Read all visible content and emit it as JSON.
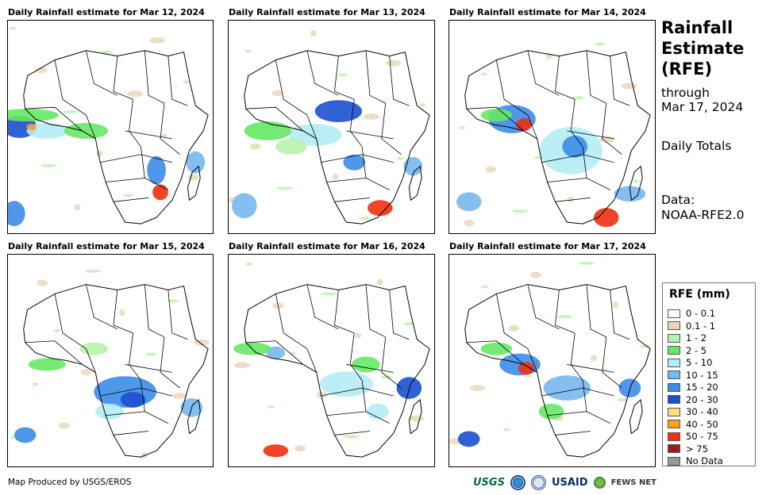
{
  "panels": [
    {
      "title": "Daily Rainfall estimate for Mar 12, 2024"
    },
    {
      "title": "Daily Rainfall estimate for Mar 13, 2024"
    },
    {
      "title": "Daily Rainfall estimate for Mar 14, 2024"
    },
    {
      "title": "Daily Rainfall estimate for Mar 15, 2024"
    },
    {
      "title": "Daily Rainfall estimate for Mar 16, 2024"
    },
    {
      "title": "Daily Rainfall estimate for Mar 17, 2024"
    }
  ],
  "sidebar": {
    "title_line1": "Rainfall",
    "title_line2": "Estimate",
    "title_line3": "(RFE)",
    "through": "through",
    "date": "Mar 17, 2024",
    "totals": "Daily Totals",
    "data_label": "Data:",
    "data_source": "NOAA-RFE2.0"
  },
  "legend": {
    "title": "RFE (mm)",
    "items": [
      {
        "label": "0 - 0.1",
        "color": "#ffffff"
      },
      {
        "label": "0.1 - 1",
        "color": "#e8d6b8"
      },
      {
        "label": "1 - 2",
        "color": "#b8f2a8"
      },
      {
        "label": "2 - 5",
        "color": "#66e866"
      },
      {
        "label": "5 - 10",
        "color": "#b4ecf4"
      },
      {
        "label": "10 - 15",
        "color": "#78b8f0"
      },
      {
        "label": "15 - 20",
        "color": "#3c8ce8"
      },
      {
        "label": "20 - 30",
        "color": "#1c50d0"
      },
      {
        "label": "30 - 40",
        "color": "#f8e080"
      },
      {
        "label": "40 - 50",
        "color": "#f8a020"
      },
      {
        "label": "50 - 75",
        "color": "#f03010"
      },
      {
        "label": "> 75",
        "color": "#a01c1c"
      },
      {
        "label": "No Data",
        "color": "#999999"
      }
    ]
  },
  "footer": {
    "credit": "Map Produced by USGS/EROS"
  },
  "logos": {
    "usgs": "USGS",
    "usaid": "USAID",
    "fews": "FEWS NET"
  }
}
